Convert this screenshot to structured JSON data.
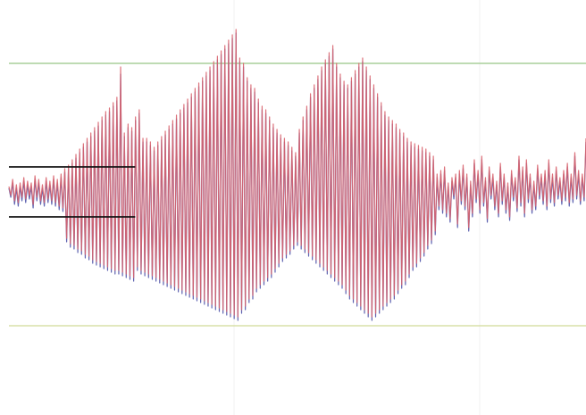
{
  "colors": {
    "background": "#ffffff",
    "series_a": "#d9646e",
    "series_b": "#4e53a8",
    "upper_threshold": "#a9cf9a",
    "lower_threshold": "#d8e0a8",
    "band": "#111111",
    "gridline": "#f0f0f0"
  },
  "chart_data": {
    "type": "line",
    "grid": "vertical",
    "legend": "none",
    "ylim": [
      -1.0,
      1.0
    ],
    "xlim": [
      0,
      320
    ],
    "thresholds": [
      {
        "role": "upper",
        "value": 0.72
      },
      {
        "role": "lower",
        "value": -0.75
      }
    ],
    "band_lines": [
      {
        "value": 0.14,
        "x_range": [
          0,
          70
        ]
      },
      {
        "value": -0.14,
        "x_range": [
          0,
          70
        ]
      }
    ],
    "series": [
      {
        "values": [
          0.03,
          -0.02,
          0.07,
          -0.05,
          0.04,
          -0.06,
          0.05,
          -0.03,
          0.08,
          -0.04,
          0.06,
          -0.02,
          0.05,
          -0.07,
          0.09,
          -0.03,
          0.07,
          -0.05,
          0.04,
          -0.06,
          0.08,
          -0.04,
          0.06,
          -0.05,
          0.09,
          -0.06,
          0.07,
          -0.08,
          0.1,
          -0.09,
          0.13,
          -0.26,
          0.15,
          -0.29,
          0.18,
          -0.3,
          0.21,
          -0.32,
          0.24,
          -0.33,
          0.27,
          -0.35,
          0.3,
          -0.36,
          0.33,
          -0.38,
          0.36,
          -0.39,
          0.39,
          -0.4,
          0.42,
          -0.41,
          0.45,
          -0.42,
          0.47,
          -0.43,
          0.5,
          -0.44,
          0.53,
          -0.44,
          0.7,
          -0.45,
          0.33,
          -0.46,
          0.38,
          -0.47,
          0.36,
          -0.48,
          0.42,
          -0.42,
          0.46,
          -0.44,
          0.3,
          -0.45,
          0.3,
          -0.46,
          0.28,
          -0.47,
          0.25,
          -0.48,
          0.28,
          -0.49,
          0.31,
          -0.5,
          0.34,
          -0.51,
          0.37,
          -0.52,
          0.4,
          -0.53,
          0.43,
          -0.54,
          0.46,
          -0.55,
          0.49,
          -0.56,
          0.52,
          -0.57,
          0.55,
          -0.58,
          0.58,
          -0.59,
          0.61,
          -0.6,
          0.64,
          -0.61,
          0.67,
          -0.62,
          0.7,
          -0.63,
          0.73,
          -0.64,
          0.76,
          -0.65,
          0.79,
          -0.66,
          0.82,
          -0.67,
          0.85,
          -0.68,
          0.88,
          -0.69,
          0.91,
          -0.7,
          0.75,
          -0.66,
          0.72,
          -0.64,
          0.64,
          -0.6,
          0.6,
          -0.58,
          0.58,
          -0.54,
          0.52,
          -0.52,
          0.48,
          -0.5,
          0.46,
          -0.48,
          0.42,
          -0.46,
          0.38,
          -0.43,
          0.35,
          -0.4,
          0.32,
          -0.37,
          0.3,
          -0.35,
          0.28,
          -0.33,
          0.25,
          -0.3,
          0.22,
          -0.28,
          0.35,
          -0.3,
          0.42,
          -0.32,
          0.48,
          -0.34,
          0.55,
          -0.36,
          0.6,
          -0.38,
          0.65,
          -0.4,
          0.7,
          -0.42,
          0.74,
          -0.44,
          0.78,
          -0.46,
          0.82,
          -0.48,
          0.72,
          -0.5,
          0.66,
          -0.52,
          0.62,
          -0.55,
          0.6,
          -0.58,
          0.64,
          -0.6,
          0.68,
          -0.62,
          0.72,
          -0.64,
          0.75,
          -0.66,
          0.7,
          -0.68,
          0.65,
          -0.7,
          0.6,
          -0.68,
          0.55,
          -0.66,
          0.5,
          -0.64,
          0.45,
          -0.62,
          0.42,
          -0.6,
          0.4,
          -0.58,
          0.38,
          -0.55,
          0.35,
          -0.52,
          0.33,
          -0.5,
          0.3,
          -0.46,
          0.28,
          -0.42,
          0.27,
          -0.4,
          0.26,
          -0.37,
          0.25,
          -0.34,
          0.24,
          -0.3,
          0.22,
          -0.27,
          0.2,
          -0.22,
          0.1,
          -0.08,
          0.12,
          -0.1,
          0.14,
          -0.12,
          0.05,
          -0.15,
          0.08,
          -0.02,
          0.1,
          -0.18,
          0.12,
          -0.05,
          0.15,
          -0.08,
          0.1,
          -0.2,
          0.06,
          -0.12,
          0.18,
          -0.04,
          0.12,
          -0.1,
          0.2,
          -0.06,
          0.08,
          -0.15,
          0.14,
          -0.02,
          0.1,
          -0.08,
          0.06,
          -0.12,
          0.16,
          -0.05,
          0.1,
          -0.1,
          0.05,
          -0.14,
          0.12,
          -0.03,
          0.08,
          -0.09,
          0.2,
          -0.06,
          0.14,
          -0.12,
          0.18,
          -0.04,
          0.1,
          -0.1,
          0.06,
          -0.08,
          0.15,
          -0.02,
          0.1,
          -0.05,
          0.12,
          -0.08,
          0.18,
          -0.04,
          0.1,
          -0.06,
          0.14,
          -0.02,
          0.08,
          -0.05,
          0.12,
          -0.03,
          0.16,
          -0.06,
          0.1,
          -0.04,
          0.22,
          -0.02,
          0.12,
          -0.05,
          0.1,
          -0.03,
          0.3
        ]
      },
      {
        "values": [
          0.02,
          -0.03,
          0.05,
          -0.07,
          0.02,
          -0.08,
          0.03,
          -0.05,
          0.06,
          -0.06,
          0.04,
          -0.04,
          0.03,
          -0.09,
          0.07,
          -0.05,
          0.05,
          -0.07,
          0.02,
          -0.08,
          0.06,
          -0.06,
          0.04,
          -0.07,
          0.07,
          -0.08,
          0.05,
          -0.1,
          0.08,
          -0.11,
          0.11,
          -0.28,
          0.13,
          -0.31,
          0.16,
          -0.32,
          0.19,
          -0.34,
          0.22,
          -0.35,
          0.25,
          -0.37,
          0.28,
          -0.38,
          0.31,
          -0.4,
          0.34,
          -0.41,
          0.37,
          -0.42,
          0.4,
          -0.43,
          0.43,
          -0.44,
          0.45,
          -0.45,
          0.48,
          -0.46,
          0.51,
          -0.46,
          0.66,
          -0.47,
          0.31,
          -0.48,
          0.36,
          -0.49,
          0.34,
          -0.5,
          0.4,
          -0.44,
          0.44,
          -0.46,
          0.28,
          -0.47,
          0.28,
          -0.48,
          0.26,
          -0.49,
          0.23,
          -0.5,
          0.26,
          -0.51,
          0.29,
          -0.52,
          0.32,
          -0.53,
          0.35,
          -0.54,
          0.38,
          -0.55,
          0.41,
          -0.56,
          0.44,
          -0.57,
          0.47,
          -0.58,
          0.5,
          -0.59,
          0.53,
          -0.6,
          0.56,
          -0.61,
          0.59,
          -0.62,
          0.62,
          -0.63,
          0.65,
          -0.64,
          0.68,
          -0.65,
          0.71,
          -0.66,
          0.74,
          -0.67,
          0.77,
          -0.68,
          0.8,
          -0.69,
          0.83,
          -0.7,
          0.86,
          -0.71,
          0.89,
          -0.72,
          0.73,
          -0.68,
          0.7,
          -0.66,
          0.62,
          -0.62,
          0.58,
          -0.6,
          0.56,
          -0.56,
          0.5,
          -0.54,
          0.46,
          -0.52,
          0.44,
          -0.5,
          0.4,
          -0.48,
          0.36,
          -0.45,
          0.33,
          -0.42,
          0.3,
          -0.39,
          0.28,
          -0.37,
          0.26,
          -0.35,
          0.23,
          -0.32,
          0.2,
          -0.3,
          0.33,
          -0.32,
          0.4,
          -0.34,
          0.46,
          -0.36,
          0.53,
          -0.38,
          0.58,
          -0.4,
          0.63,
          -0.42,
          0.68,
          -0.44,
          0.72,
          -0.46,
          0.76,
          -0.48,
          0.8,
          -0.5,
          0.7,
          -0.52,
          0.64,
          -0.54,
          0.6,
          -0.57,
          0.58,
          -0.6,
          0.62,
          -0.62,
          0.66,
          -0.64,
          0.7,
          -0.66,
          0.73,
          -0.68,
          0.68,
          -0.7,
          0.63,
          -0.72,
          0.58,
          -0.7,
          0.53,
          -0.68,
          0.48,
          -0.66,
          0.43,
          -0.64,
          0.4,
          -0.62,
          0.38,
          -0.6,
          0.36,
          -0.57,
          0.33,
          -0.54,
          0.31,
          -0.52,
          0.28,
          -0.48,
          0.26,
          -0.44,
          0.25,
          -0.42,
          0.24,
          -0.39,
          0.23,
          -0.36,
          0.22,
          -0.32,
          0.2,
          -0.29,
          0.18,
          -0.24,
          0.08,
          -0.1,
          0.1,
          -0.12,
          0.12,
          -0.14,
          0.03,
          -0.17,
          0.06,
          -0.04,
          0.08,
          -0.2,
          0.1,
          -0.07,
          0.13,
          -0.1,
          0.08,
          -0.22,
          0.04,
          -0.14,
          0.16,
          -0.06,
          0.1,
          -0.12,
          0.18,
          -0.08,
          0.06,
          -0.17,
          0.12,
          -0.04,
          0.08,
          -0.1,
          0.04,
          -0.14,
          0.14,
          -0.07,
          0.08,
          -0.12,
          0.03,
          -0.16,
          0.1,
          -0.05,
          0.06,
          -0.11,
          0.18,
          -0.08,
          0.12,
          -0.14,
          0.16,
          -0.06,
          0.08,
          -0.12,
          0.04,
          -0.1,
          0.13,
          -0.04,
          0.08,
          -0.07,
          0.1,
          -0.1,
          0.16,
          -0.06,
          0.08,
          -0.08,
          0.12,
          -0.04,
          0.06,
          -0.07,
          0.1,
          -0.05,
          0.14,
          -0.08,
          0.08,
          -0.06,
          0.2,
          -0.04,
          0.1,
          -0.07,
          0.08,
          -0.05,
          0.28
        ]
      }
    ]
  }
}
